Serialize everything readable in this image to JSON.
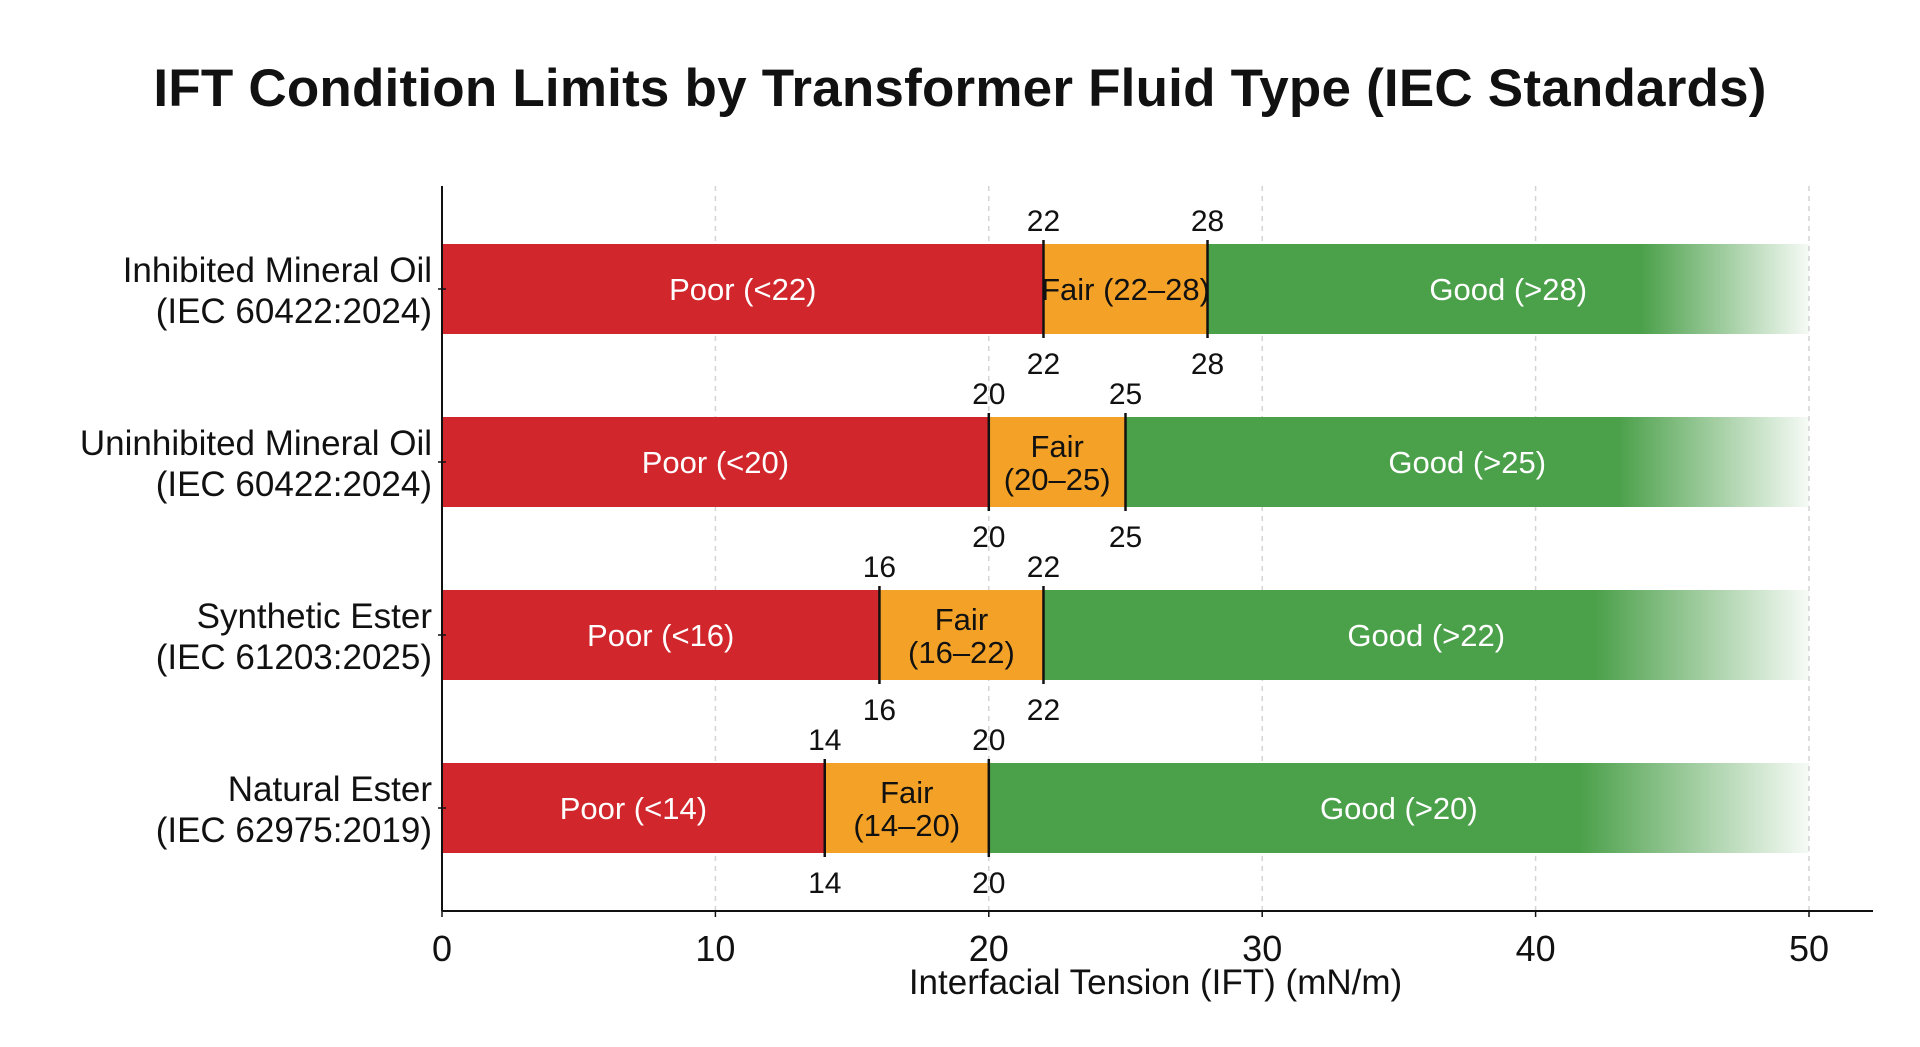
{
  "chart_data": {
    "type": "bar",
    "orientation": "horizontal",
    "stacked_ranges": true,
    "title": "IFT Condition Limits by Transformer Fluid Type (IEC Standards)",
    "xlabel": "Interfacial Tension (IFT) (mN/m)",
    "ylabel": "",
    "xlim": [
      0,
      50
    ],
    "xticks": [
      0,
      10,
      20,
      30,
      40,
      50
    ],
    "grid": "vertical-dashed",
    "categories": [
      {
        "name_line1": "Inhibited Mineral Oil",
        "name_line2": "(IEC 60422:2024)",
        "poor_max": 22,
        "good_min": 28,
        "poor_label": "Poor (<22)",
        "fair_label": "Fair (22–28)",
        "good_label": "Good (>28)"
      },
      {
        "name_line1": "Uninhibited Mineral Oil",
        "name_line2": "(IEC 60422:2024)",
        "poor_max": 20,
        "good_min": 25,
        "poor_label": "Poor (<20)",
        "fair_label": "Fair\n(20–25)",
        "good_label": "Good (>25)"
      },
      {
        "name_line1": "Synthetic Ester",
        "name_line2": "(IEC 61203:2025)",
        "poor_max": 16,
        "good_min": 22,
        "poor_label": "Poor (<16)",
        "fair_label": "Fair\n(16–22)",
        "good_label": "Good (>22)"
      },
      {
        "name_line1": "Natural Ester",
        "name_line2": "(IEC 62975:2019)",
        "poor_max": 14,
        "good_min": 20,
        "poor_label": "Poor (<14)",
        "fair_label": "Fair\n(14–20)",
        "good_label": "Good (>20)"
      }
    ],
    "colors": {
      "poor": "#d1262c",
      "fair": "#f4a227",
      "good": "#4ba04a"
    }
  }
}
